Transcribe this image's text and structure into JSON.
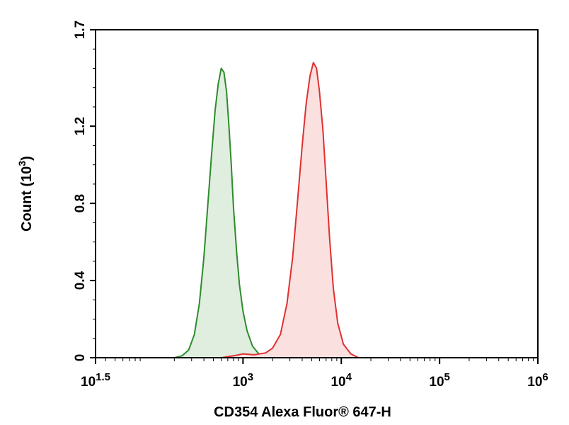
{
  "chart_data": {
    "type": "area",
    "xscale": "log",
    "xlim": [
      31.6,
      1000000
    ],
    "ylim": [
      0,
      1.7
    ],
    "ylabel": "Count (10",
    "ylabel_sup": "3",
    "ylabel_close": ")",
    "xlabel": "CD354 Alexa Fluor® 647-H",
    "xticks": [
      {
        "value": 31.6,
        "base": "10",
        "exp": "1.5"
      },
      {
        "value": 1000,
        "base": "10",
        "exp": "3"
      },
      {
        "value": 10000,
        "base": "10",
        "exp": "4"
      },
      {
        "value": 100000,
        "base": "10",
        "exp": "5"
      },
      {
        "value": 1000000,
        "base": "10",
        "exp": "6"
      }
    ],
    "yticks": [
      {
        "value": 0,
        "label": "0"
      },
      {
        "value": 0.4,
        "label": "0.4"
      },
      {
        "value": 0.8,
        "label": "0.8"
      },
      {
        "value": 1.2,
        "label": "1.2"
      },
      {
        "value": 1.7,
        "label": "1.7"
      }
    ],
    "grid": false,
    "series": [
      {
        "color": "#2e8b2e",
        "fill": "#dfeedf",
        "points": [
          [
            200,
            0.0
          ],
          [
            240,
            0.01
          ],
          [
            280,
            0.04
          ],
          [
            320,
            0.12
          ],
          [
            360,
            0.28
          ],
          [
            400,
            0.52
          ],
          [
            440,
            0.8
          ],
          [
            480,
            1.06
          ],
          [
            520,
            1.28
          ],
          [
            560,
            1.42
          ],
          [
            600,
            1.5
          ],
          [
            640,
            1.48
          ],
          [
            680,
            1.38
          ],
          [
            720,
            1.2
          ],
          [
            760,
            1.0
          ],
          [
            800,
            0.78
          ],
          [
            860,
            0.55
          ],
          [
            920,
            0.38
          ],
          [
            1000,
            0.24
          ],
          [
            1100,
            0.14
          ],
          [
            1250,
            0.06
          ],
          [
            1450,
            0.02
          ],
          [
            1700,
            0.005
          ],
          [
            2000,
            0.0
          ]
        ]
      },
      {
        "color": "#e03030",
        "fill": "#fbe0e0",
        "points": [
          [
            600,
            0.0
          ],
          [
            800,
            0.01
          ],
          [
            1000,
            0.02
          ],
          [
            1300,
            0.015
          ],
          [
            1700,
            0.025
          ],
          [
            2000,
            0.05
          ],
          [
            2400,
            0.12
          ],
          [
            2800,
            0.28
          ],
          [
            3200,
            0.52
          ],
          [
            3600,
            0.82
          ],
          [
            4000,
            1.1
          ],
          [
            4400,
            1.32
          ],
          [
            4800,
            1.46
          ],
          [
            5200,
            1.53
          ],
          [
            5600,
            1.5
          ],
          [
            6000,
            1.38
          ],
          [
            6500,
            1.18
          ],
          [
            7000,
            0.92
          ],
          [
            7600,
            0.62
          ],
          [
            8300,
            0.36
          ],
          [
            9200,
            0.18
          ],
          [
            10500,
            0.07
          ],
          [
            12500,
            0.02
          ],
          [
            15000,
            0.0
          ]
        ]
      }
    ]
  }
}
